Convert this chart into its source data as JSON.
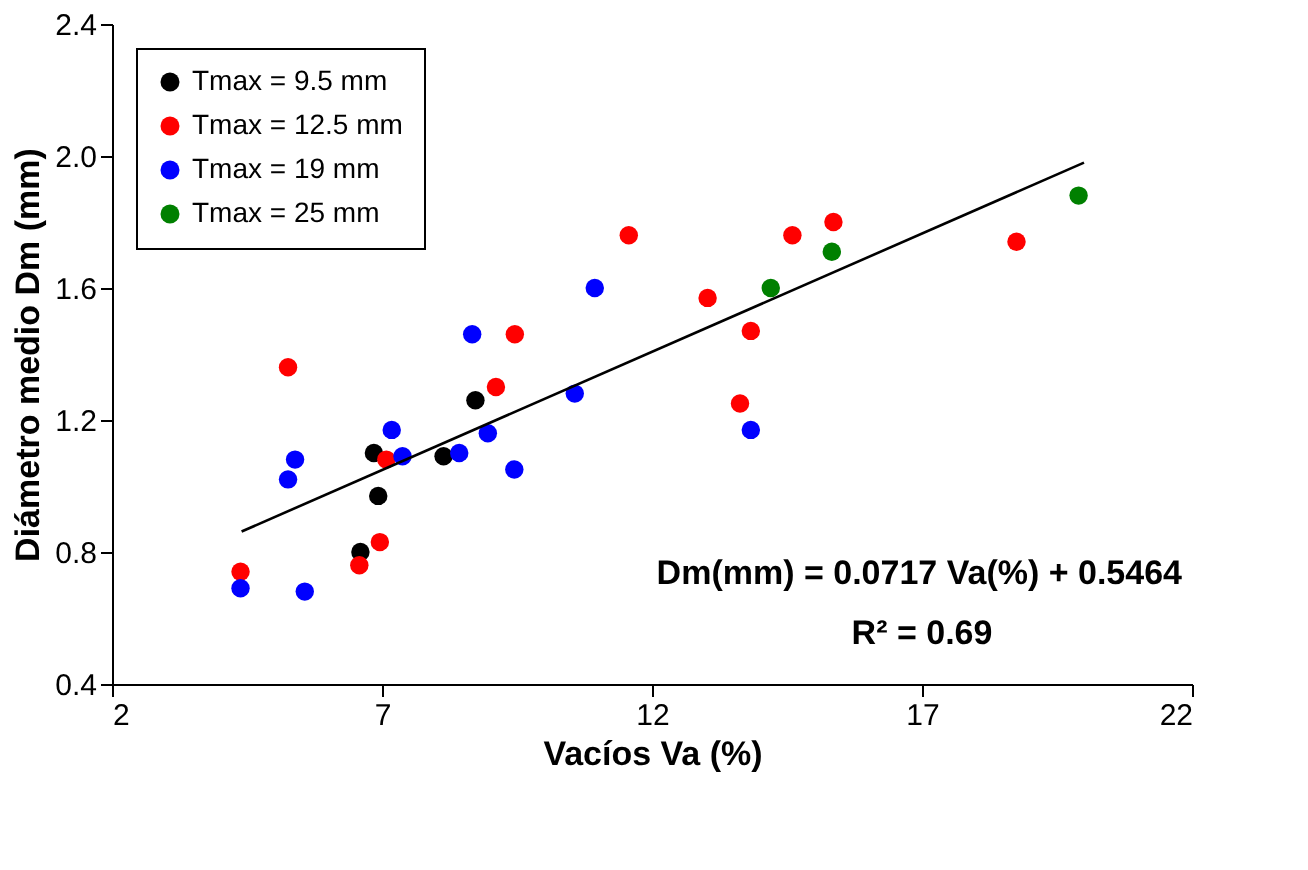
{
  "chart_data": {
    "type": "scatter",
    "xlabel": "Vacíos Va (%)",
    "ylabel": "Diámetro medio Dm (mm)",
    "xlim": [
      2,
      22
    ],
    "xticks": [
      2,
      7,
      12,
      17,
      22
    ],
    "ylim": [
      0.4,
      2.4
    ],
    "yticks": [
      0.4,
      0.8,
      1.2,
      1.6,
      {
        "value": 2.0,
        "label": "2.0"
      },
      2.4
    ],
    "grid": false,
    "legend": "top left",
    "marker": "circle",
    "series": [
      {
        "name": "Tmax = 9.5 mm",
        "color": "#000000",
        "x": [
          6.85,
          6.93,
          6.6,
          8.14,
          8.73
        ],
        "values": [
          1.1,
          0.97,
          0.8,
          1.09,
          1.26
        ]
      },
      {
        "name": "Tmax = 12.5 mm",
        "color": "#ff0000",
        "x": [
          4.38,
          5.26,
          6.58,
          6.96,
          7.08,
          9.11,
          9.46,
          11.57,
          13.03,
          13.83,
          13.63,
          14.6,
          15.36,
          18.75
        ],
        "values": [
          0.74,
          1.36,
          0.76,
          0.83,
          1.08,
          1.3,
          1.46,
          1.76,
          1.57,
          1.47,
          1.25,
          1.76,
          1.8,
          1.74
        ]
      },
      {
        "name": "Tmax = 19 mm",
        "color": "#0000ff",
        "x": [
          4.38,
          5.57,
          5.26,
          5.39,
          7.18,
          7.38,
          8.43,
          8.67,
          8.96,
          9.45,
          10.57,
          10.94,
          13.83
        ],
        "values": [
          0.69,
          0.68,
          1.02,
          1.08,
          1.17,
          1.09,
          1.1,
          1.46,
          1.16,
          1.05,
          1.28,
          1.6,
          1.17
        ]
      },
      {
        "name": "Tmax = 25 mm",
        "color": "#008000",
        "x": [
          14.2,
          15.33,
          19.9
        ],
        "values": [
          1.6,
          1.71,
          1.88
        ]
      },
      {
        "type": "line",
        "color": "#000000",
        "marker": "none",
        "x": [
          4.4,
          20
        ],
        "values": [
          0.862,
          1.98
        ]
      }
    ],
    "annotations": [
      "Dm(mm) = 0.0717 Va(%) + 0.5464",
      "R² = 0.69"
    ]
  }
}
